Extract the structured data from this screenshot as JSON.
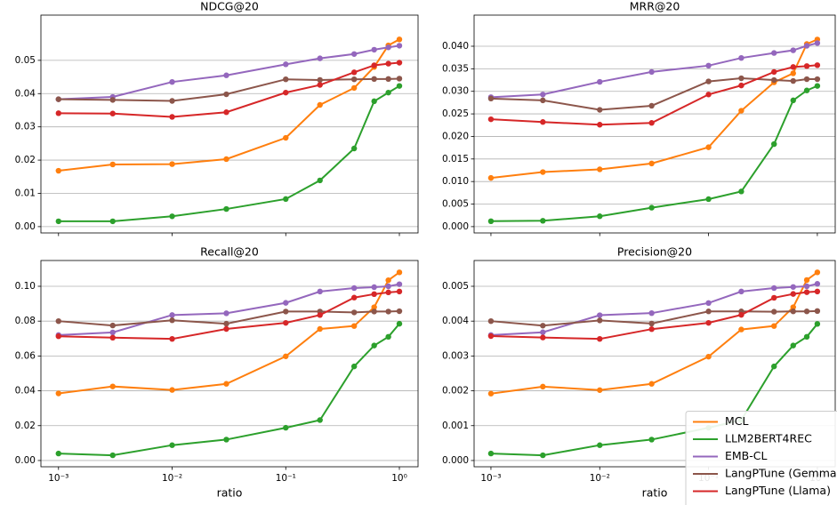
{
  "chart_data": [
    {
      "type": "line",
      "title": "NDCG@20",
      "xscale": "log",
      "grid": "y",
      "x": [
        0.001,
        0.003,
        0.01,
        0.03,
        0.1,
        0.2,
        0.4,
        0.6,
        0.8,
        1.0
      ],
      "xlim": [
        0.0007,
        1.46
      ],
      "xticks": [
        0.001,
        0.01,
        0.1,
        1
      ],
      "ylim": [
        -0.0019,
        0.0636
      ],
      "yticks": [
        {
          "value": 0,
          "label": "0.00"
        },
        {
          "value": 0.01,
          "label": "0.01"
        },
        {
          "value": 0.02,
          "label": "0.02"
        },
        {
          "value": 0.03,
          "label": "0.03"
        },
        {
          "value": 0.04,
          "label": "0.04"
        },
        {
          "value": 0.05,
          "label": "0.05"
        }
      ],
      "series": [
        {
          "name": "MCL",
          "color": "#ff7f0e",
          "values": [
            0.0168,
            0.0187,
            0.0188,
            0.0203,
            0.0267,
            0.0366,
            0.0417,
            0.048,
            0.0545,
            0.0563
          ]
        },
        {
          "name": "LLM2BERT4REC",
          "color": "#2ca02c",
          "values": [
            0.0016,
            0.0016,
            0.0031,
            0.0053,
            0.0083,
            0.0139,
            0.0235,
            0.0377,
            0.0403,
            0.0423
          ]
        },
        {
          "name": "EMB-CL",
          "color": "#9467bd",
          "values": [
            0.0383,
            0.039,
            0.0435,
            0.0455,
            0.0488,
            0.0506,
            0.0519,
            0.0532,
            0.0539,
            0.0544
          ]
        },
        {
          "name": "LangPTune (Gemma",
          "color": "#8c564b",
          "values": [
            0.0383,
            0.0381,
            0.0378,
            0.0398,
            0.0443,
            0.0441,
            0.0443,
            0.0444,
            0.0444,
            0.0445
          ]
        },
        {
          "name": "LangPTune (Llama)",
          "color": "#d62728",
          "values": [
            0.0341,
            0.034,
            0.033,
            0.0344,
            0.0403,
            0.0426,
            0.0464,
            0.0485,
            0.049,
            0.0493
          ]
        }
      ]
    },
    {
      "type": "line",
      "title": "MRR@20",
      "xscale": "log",
      "grid": "y",
      "x": [
        0.001,
        0.003,
        0.01,
        0.03,
        0.1,
        0.2,
        0.4,
        0.6,
        0.8,
        1.0
      ],
      "xlim": [
        0.0007,
        1.46
      ],
      "xticks": [
        0.001,
        0.01,
        0.1,
        1
      ],
      "ylim": [
        -0.0014,
        0.0469
      ],
      "yticks": [
        {
          "value": 0,
          "label": "0.000"
        },
        {
          "value": 0.005,
          "label": "0.005"
        },
        {
          "value": 0.01,
          "label": "0.010"
        },
        {
          "value": 0.015,
          "label": "0.015"
        },
        {
          "value": 0.02,
          "label": "0.020"
        },
        {
          "value": 0.025,
          "label": "0.025"
        },
        {
          "value": 0.03,
          "label": "0.030"
        },
        {
          "value": 0.035,
          "label": "0.035"
        },
        {
          "value": 0.04,
          "label": "0.040"
        }
      ],
      "series": [
        {
          "name": "MCL",
          "color": "#ff7f0e",
          "values": [
            0.0108,
            0.0121,
            0.0127,
            0.014,
            0.0176,
            0.0257,
            0.032,
            0.034,
            0.0405,
            0.0415
          ]
        },
        {
          "name": "LLM2BERT4REC",
          "color": "#2ca02c",
          "values": [
            0.0012,
            0.0013,
            0.0023,
            0.0042,
            0.0061,
            0.0078,
            0.0183,
            0.028,
            0.0302,
            0.0312
          ]
        },
        {
          "name": "EMB-CL",
          "color": "#9467bd",
          "values": [
            0.0287,
            0.0293,
            0.0321,
            0.0343,
            0.0357,
            0.0374,
            0.0385,
            0.0391,
            0.0401,
            0.0407
          ]
        },
        {
          "name": "LangPTune (Gemma",
          "color": "#8c564b",
          "values": [
            0.0284,
            0.028,
            0.0259,
            0.0268,
            0.0322,
            0.0329,
            0.0325,
            0.0323,
            0.0327,
            0.0327
          ]
        },
        {
          "name": "LangPTune (Llama)",
          "color": "#d62728",
          "values": [
            0.0238,
            0.0232,
            0.0226,
            0.023,
            0.0293,
            0.0313,
            0.0343,
            0.0354,
            0.0356,
            0.0358
          ]
        }
      ]
    },
    {
      "type": "line",
      "title": "Recall@20",
      "xlabel": "ratio",
      "xscale": "log",
      "grid": "y",
      "x": [
        0.001,
        0.003,
        0.01,
        0.03,
        0.1,
        0.2,
        0.4,
        0.6,
        0.8,
        1.0
      ],
      "xlim": [
        0.0007,
        1.46
      ],
      "xticks": [
        {
          "value": 0.001,
          "label": "10⁻³"
        },
        {
          "value": 0.01,
          "label": "10⁻²"
        },
        {
          "value": 0.1,
          "label": "10⁻¹"
        },
        {
          "value": 1,
          "label": "10⁰"
        }
      ],
      "ylim": [
        -0.0036,
        0.1148
      ],
      "yticks": [
        {
          "value": 0,
          "label": "0.00"
        },
        {
          "value": 0.02,
          "label": "0.02"
        },
        {
          "value": 0.04,
          "label": "0.04"
        },
        {
          "value": 0.06,
          "label": "0.06"
        },
        {
          "value": 0.08,
          "label": "0.08"
        },
        {
          "value": 0.1,
          "label": "0.10"
        }
      ],
      "series": [
        {
          "name": "MCL",
          "color": "#ff7f0e",
          "values": [
            0.0385,
            0.0425,
            0.0405,
            0.044,
            0.0598,
            0.0755,
            0.0772,
            0.088,
            0.1035,
            0.108
          ]
        },
        {
          "name": "LLM2BERT4REC",
          "color": "#2ca02c",
          "values": [
            0.004,
            0.003,
            0.0088,
            0.012,
            0.0188,
            0.0232,
            0.054,
            0.066,
            0.071,
            0.0785
          ]
        },
        {
          "name": "EMB-CL",
          "color": "#9467bd",
          "values": [
            0.072,
            0.0735,
            0.0835,
            0.0845,
            0.0905,
            0.097,
            0.099,
            0.0995,
            0.1,
            0.1012
          ]
        },
        {
          "name": "LangPTune (Gemma",
          "color": "#8c564b",
          "values": [
            0.08,
            0.0775,
            0.0805,
            0.0785,
            0.0855,
            0.0855,
            0.085,
            0.0855,
            0.0855,
            0.0857
          ]
        },
        {
          "name": "LangPTune (Llama)",
          "color": "#d62728",
          "values": [
            0.0713,
            0.0705,
            0.0698,
            0.0755,
            0.079,
            0.0835,
            0.0935,
            0.0955,
            0.0965,
            0.097
          ]
        }
      ]
    },
    {
      "type": "line",
      "title": "Precision@20",
      "xlabel": "ratio",
      "xscale": "log",
      "grid": "y",
      "legend": "lower right",
      "x": [
        0.001,
        0.003,
        0.01,
        0.03,
        0.1,
        0.2,
        0.4,
        0.6,
        0.8,
        1.0
      ],
      "xlim": [
        0.0007,
        1.46
      ],
      "xticks": [
        {
          "value": 0.001,
          "label": "10⁻³"
        },
        {
          "value": 0.01,
          "label": "10⁻²"
        },
        {
          "value": 0.1,
          "label": "10⁻¹"
        },
        {
          "value": 1,
          "label": "10⁰"
        }
      ],
      "ylim": [
        -0.00018,
        0.00574
      ],
      "yticks": [
        {
          "value": 0,
          "label": "0.000"
        },
        {
          "value": 0.001,
          "label": "0.001"
        },
        {
          "value": 0.002,
          "label": "0.002"
        },
        {
          "value": 0.003,
          "label": "0.003"
        },
        {
          "value": 0.004,
          "label": "0.004"
        },
        {
          "value": 0.005,
          "label": "0.005"
        }
      ],
      "series": [
        {
          "name": "MCL",
          "color": "#ff7f0e",
          "values": [
            0.00192,
            0.00212,
            0.00202,
            0.0022,
            0.00298,
            0.00376,
            0.00386,
            0.0044,
            0.00518,
            0.0054
          ]
        },
        {
          "name": "LLM2BERT4REC",
          "color": "#2ca02c",
          "values": [
            0.0002,
            0.00015,
            0.00044,
            0.0006,
            0.00094,
            0.00116,
            0.0027,
            0.0033,
            0.00355,
            0.00392
          ]
        },
        {
          "name": "EMB-CL",
          "color": "#9467bd",
          "values": [
            0.0036,
            0.00368,
            0.00417,
            0.00423,
            0.00452,
            0.00485,
            0.00495,
            0.00498,
            0.005,
            0.00507
          ]
        },
        {
          "name": "LangPTune (Gemma",
          "color": "#8c564b",
          "values": [
            0.004,
            0.00387,
            0.00402,
            0.00393,
            0.00428,
            0.00428,
            0.00427,
            0.00428,
            0.00428,
            0.00429
          ]
        },
        {
          "name": "LangPTune (Llama)",
          "color": "#d62728",
          "values": [
            0.00357,
            0.00353,
            0.00349,
            0.00377,
            0.00395,
            0.00418,
            0.00467,
            0.00478,
            0.00483,
            0.00485
          ]
        }
      ]
    }
  ]
}
